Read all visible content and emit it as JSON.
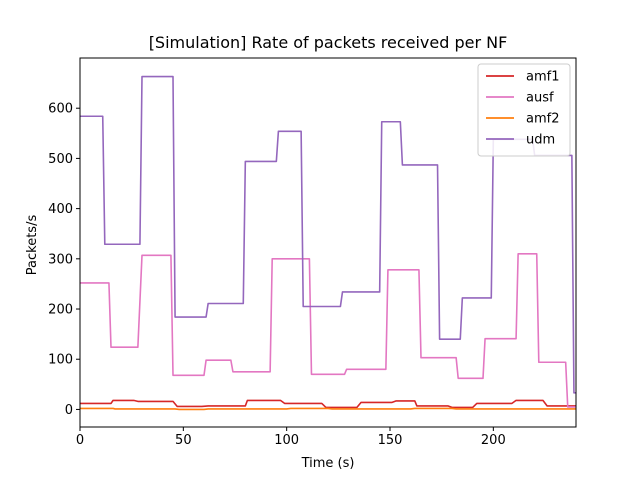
{
  "chart_data": {
    "type": "line",
    "title": "[Simulation] Rate of packets received per NF",
    "xlabel": "Time (s)",
    "ylabel": "Packets/s",
    "xlim": [
      0,
      240
    ],
    "ylim": [
      -35,
      700
    ],
    "xticks": [
      0,
      50,
      100,
      150,
      200
    ],
    "yticks": [
      0,
      100,
      200,
      300,
      400,
      500,
      600
    ],
    "grid": false,
    "legend_position": "top-right",
    "series": [
      {
        "name": "amf1",
        "color": "#d62728",
        "points": [
          [
            0,
            12
          ],
          [
            15,
            12
          ],
          [
            16,
            18
          ],
          [
            26,
            18
          ],
          [
            28,
            16
          ],
          [
            45,
            16
          ],
          [
            47,
            6
          ],
          [
            59,
            6
          ],
          [
            62,
            7
          ],
          [
            80,
            7
          ],
          [
            81,
            18
          ],
          [
            97,
            18
          ],
          [
            99,
            12
          ],
          [
            117,
            12
          ],
          [
            119,
            4
          ],
          [
            134,
            4
          ],
          [
            136,
            14
          ],
          [
            151,
            14
          ],
          [
            153,
            17
          ],
          [
            162,
            17
          ],
          [
            163,
            7
          ],
          [
            178,
            7
          ],
          [
            180,
            4
          ],
          [
            190,
            4
          ],
          [
            192,
            12
          ],
          [
            209,
            12
          ],
          [
            211,
            18
          ],
          [
            224,
            18
          ],
          [
            226,
            7
          ],
          [
            240,
            7
          ]
        ]
      },
      {
        "name": "ausf",
        "color": "#e377c2",
        "points": [
          [
            0,
            252
          ],
          [
            14,
            252
          ],
          [
            15,
            124
          ],
          [
            28,
            124
          ],
          [
            30,
            307
          ],
          [
            44,
            307
          ],
          [
            45,
            68
          ],
          [
            60,
            68
          ],
          [
            61,
            98
          ],
          [
            73,
            98
          ],
          [
            74,
            75
          ],
          [
            92,
            75
          ],
          [
            93,
            300
          ],
          [
            111,
            300
          ],
          [
            112,
            70
          ],
          [
            128,
            70
          ],
          [
            129,
            80
          ],
          [
            148,
            80
          ],
          [
            149,
            278
          ],
          [
            164,
            278
          ],
          [
            165,
            103
          ],
          [
            182,
            103
          ],
          [
            183,
            62
          ],
          [
            195,
            62
          ],
          [
            196,
            141
          ],
          [
            211,
            141
          ],
          [
            212,
            310
          ],
          [
            221,
            310
          ],
          [
            222,
            94
          ],
          [
            235,
            94
          ],
          [
            236,
            5
          ],
          [
            240,
            5
          ]
        ]
      },
      {
        "name": "amf2",
        "color": "#ff7f0e",
        "points": [
          [
            0,
            2
          ],
          [
            16,
            2
          ],
          [
            17,
            1
          ],
          [
            46,
            1
          ],
          [
            48,
            0
          ],
          [
            60,
            0
          ],
          [
            62,
            1
          ],
          [
            100,
            1
          ],
          [
            102,
            2
          ],
          [
            120,
            2
          ],
          [
            122,
            1
          ],
          [
            160,
            1
          ],
          [
            162,
            2
          ],
          [
            180,
            2
          ],
          [
            182,
            1
          ],
          [
            240,
            1
          ]
        ]
      },
      {
        "name": "udm",
        "color": "#9467bd",
        "points": [
          [
            0,
            584
          ],
          [
            11,
            584
          ],
          [
            12,
            329
          ],
          [
            29,
            329
          ],
          [
            30,
            663
          ],
          [
            45,
            663
          ],
          [
            46,
            184
          ],
          [
            61,
            184
          ],
          [
            62,
            211
          ],
          [
            79,
            211
          ],
          [
            80,
            494
          ],
          [
            95,
            494
          ],
          [
            96,
            554
          ],
          [
            107,
            554
          ],
          [
            108,
            205
          ],
          [
            126,
            205
          ],
          [
            127,
            234
          ],
          [
            145,
            234
          ],
          [
            146,
            573
          ],
          [
            155,
            573
          ],
          [
            156,
            487
          ],
          [
            173,
            487
          ],
          [
            174,
            140
          ],
          [
            184,
            140
          ],
          [
            185,
            222
          ],
          [
            199,
            222
          ],
          [
            200,
            538
          ],
          [
            219,
            538
          ],
          [
            220,
            506
          ],
          [
            238,
            506
          ],
          [
            239,
            33
          ],
          [
            240,
            33
          ]
        ]
      }
    ]
  }
}
